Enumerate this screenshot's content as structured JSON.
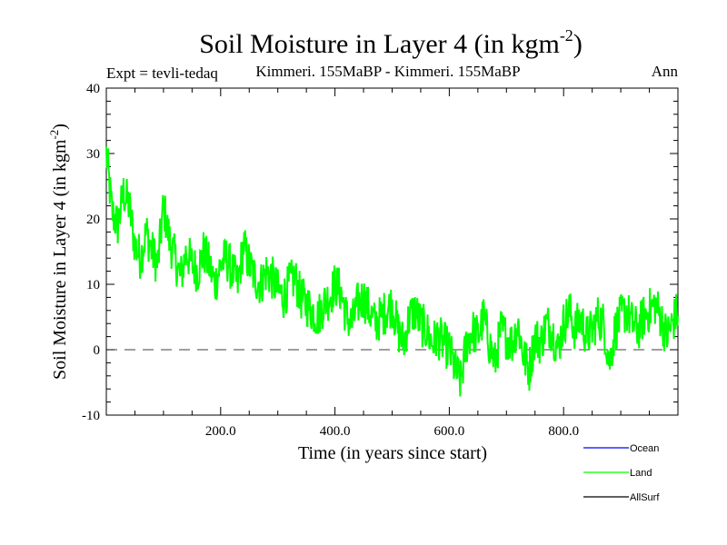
{
  "chart_data": {
    "type": "line",
    "title": "Soil Moisture in Layer 4 (in kgm",
    "title_sup": "-2",
    "title_close": ")",
    "subtitle_left": "Expt = tevli-tedaq",
    "subtitle_center": "Kimmeri. 155MaBP - Kimmeri. 155MaBP",
    "subtitle_right": "Ann",
    "xlabel": "Time (in years since start)",
    "ylabel": "Soil Moisture in Layer 4 (in kgm",
    "ylabel_sup": "-2",
    "ylabel_close": ")",
    "xlim": [
      0,
      1000
    ],
    "ylim": [
      -10,
      40
    ],
    "xticks": [
      200,
      400,
      600,
      800
    ],
    "xtick_labels": [
      "200.0",
      "400.0",
      "600.0",
      "800.0"
    ],
    "yticks": [
      -10,
      0,
      10,
      20,
      30,
      40
    ],
    "ytick_labels": [
      "-10",
      "0",
      "10",
      "20",
      "30",
      "40"
    ],
    "zero_line": 0,
    "legend": [
      {
        "name": "Ocean",
        "color": "#0000ff"
      },
      {
        "name": "Land",
        "color": "#00ff00"
      },
      {
        "name": "AllSurf",
        "color": "#000000"
      }
    ],
    "series": [
      {
        "name": "Land",
        "color": "#00ff00",
        "x": [
          0,
          10,
          20,
          30,
          40,
          50,
          60,
          70,
          80,
          90,
          100,
          110,
          120,
          130,
          140,
          150,
          160,
          170,
          180,
          190,
          200,
          210,
          220,
          230,
          240,
          250,
          260,
          270,
          280,
          290,
          300,
          310,
          320,
          330,
          340,
          350,
          360,
          370,
          380,
          390,
          400,
          410,
          420,
          430,
          440,
          450,
          460,
          470,
          480,
          490,
          500,
          510,
          520,
          530,
          540,
          550,
          560,
          570,
          580,
          590,
          600,
          610,
          620,
          630,
          640,
          650,
          660,
          670,
          680,
          690,
          700,
          710,
          720,
          730,
          740,
          750,
          760,
          770,
          780,
          790,
          800,
          810,
          820,
          830,
          840,
          850,
          860,
          870,
          880,
          890,
          900,
          910,
          920,
          930,
          940,
          950,
          960,
          970,
          980,
          990,
          1000
        ],
        "values": [
          30,
          21,
          19,
          24,
          22,
          16,
          14,
          18,
          15,
          13,
          22,
          17,
          14,
          11,
          15,
          13,
          12,
          15,
          13,
          10,
          13,
          14,
          12,
          10,
          16,
          13,
          11,
          10,
          12,
          11,
          9,
          8,
          10,
          11,
          8,
          7,
          6,
          5,
          7,
          8,
          10,
          9,
          5,
          4,
          7,
          8,
          6,
          4,
          5,
          6,
          7,
          3,
          1,
          5,
          6,
          4,
          3,
          1,
          2,
          1,
          0,
          -3,
          -5,
          1,
          3,
          2,
          5,
          1,
          -2,
          3,
          2,
          1,
          4,
          -1,
          -3,
          2,
          1,
          4,
          3,
          0,
          4,
          6,
          3,
          5,
          2,
          3,
          5,
          4,
          -2,
          3,
          5,
          6,
          4,
          3,
          5,
          6,
          7,
          5,
          2,
          4,
          6
        ]
      }
    ]
  }
}
